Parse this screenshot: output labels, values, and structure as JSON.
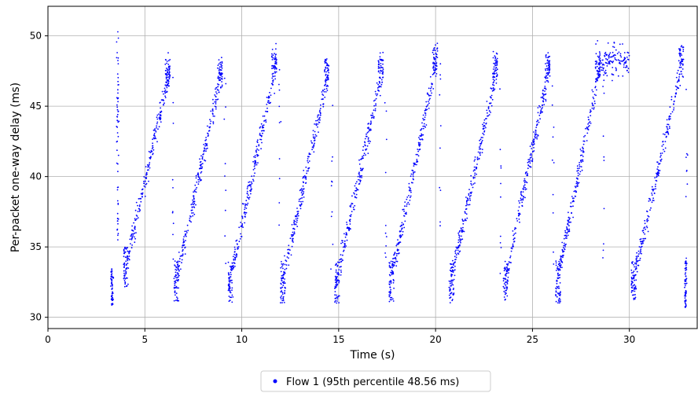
{
  "chart_data": {
    "type": "scatter",
    "title": "",
    "xlabel": "Time (s)",
    "ylabel": "Per-packet one-way delay (ms)",
    "xlim": [
      0,
      33.5
    ],
    "ylim": [
      29.2,
      52.1
    ],
    "xticks": [
      0,
      5,
      10,
      15,
      20,
      25,
      30
    ],
    "yticks": [
      30,
      35,
      40,
      45,
      50
    ],
    "grid": true,
    "legend_position": "bottom-center",
    "series": [
      {
        "name": "Flow 1 (95th percentile 48.56 ms)",
        "color": "#0000ff",
        "marker": "point",
        "sawtooth_cycles": [
          {
            "x_start": 3.9,
            "x_end": 6.3,
            "y_start": 33.0,
            "y_end": 47.5
          },
          {
            "x_start": 6.5,
            "x_end": 9.0,
            "y_start": 32.0,
            "y_end": 47.5
          },
          {
            "x_start": 9.3,
            "x_end": 11.8,
            "y_start": 32.0,
            "y_end": 48.0
          },
          {
            "x_start": 12.0,
            "x_end": 14.5,
            "y_start": 32.0,
            "y_end": 47.5
          },
          {
            "x_start": 14.8,
            "x_end": 17.3,
            "y_start": 32.0,
            "y_end": 47.8
          },
          {
            "x_start": 17.6,
            "x_end": 20.1,
            "y_start": 32.0,
            "y_end": 48.5
          },
          {
            "x_start": 20.7,
            "x_end": 23.2,
            "y_start": 32.0,
            "y_end": 47.8
          },
          {
            "x_start": 23.5,
            "x_end": 25.9,
            "y_start": 32.0,
            "y_end": 48.0
          },
          {
            "x_start": 26.2,
            "x_end": 28.5,
            "y_start": 32.0,
            "y_end": 48.0
          },
          {
            "x_start": 30.1,
            "x_end": 32.8,
            "y_start": 32.0,
            "y_end": 48.5
          }
        ],
        "plateaus": [
          {
            "x_start": 28.5,
            "x_end": 30.0,
            "y": 48.2
          }
        ],
        "vertical_clusters": [
          {
            "x": 3.3,
            "y_min": 30.8,
            "y_max": 33.5
          },
          {
            "x": 3.6,
            "y_min": 35.0,
            "y_max": 50.3
          },
          {
            "x": 32.9,
            "y_min": 30.7,
            "y_max": 34.0
          }
        ]
      }
    ]
  }
}
